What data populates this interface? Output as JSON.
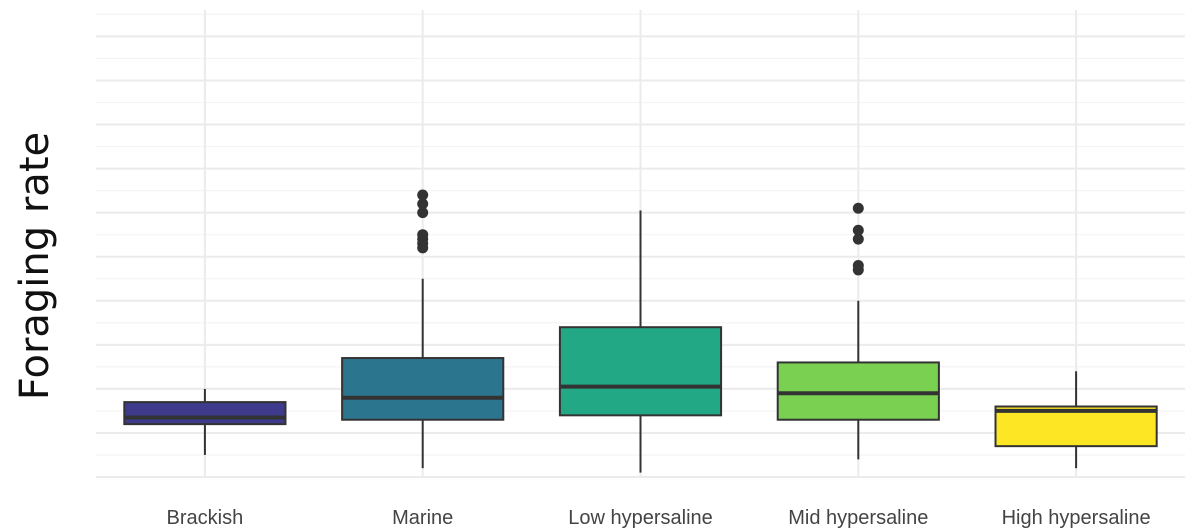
{
  "chart_data": {
    "type": "box",
    "title": "",
    "xlabel": "",
    "ylabel": "Foraging rate",
    "y_ticks_labeled": false,
    "grid": true,
    "categories": [
      "Brackish",
      "Marine",
      "Low hypersaline",
      "Mid hypersaline",
      "High hypersaline"
    ],
    "ylim": [
      0,
      10.6
    ],
    "boxes": [
      {
        "category": "Brackish",
        "color": "#3e3b8c",
        "whisker_low": 0.5,
        "q1": 1.2,
        "median": 1.35,
        "q3": 1.7,
        "whisker_high": 2.0,
        "outliers": []
      },
      {
        "category": "Marine",
        "color": "#2c758e",
        "whisker_low": 0.2,
        "q1": 1.3,
        "median": 1.8,
        "q3": 2.7,
        "whisker_high": 4.5,
        "outliers": [
          5.2,
          5.3,
          5.4,
          5.5,
          6.0,
          6.2,
          6.4
        ]
      },
      {
        "category": "Low hypersaline",
        "color": "#22a884",
        "whisker_low": 0.1,
        "q1": 1.4,
        "median": 2.05,
        "q3": 3.4,
        "whisker_high": 6.05,
        "outliers": []
      },
      {
        "category": "Mid hypersaline",
        "color": "#7ad151",
        "whisker_low": 0.4,
        "q1": 1.3,
        "median": 1.9,
        "q3": 2.6,
        "whisker_high": 4.0,
        "outliers": [
          4.7,
          4.8,
          5.4,
          5.6,
          6.1
        ]
      },
      {
        "category": "High hypersaline",
        "color": "#fde725",
        "whisker_low": 0.2,
        "q1": 0.7,
        "median": 1.5,
        "q3": 1.6,
        "whisker_high": 2.4,
        "outliers": []
      }
    ]
  }
}
